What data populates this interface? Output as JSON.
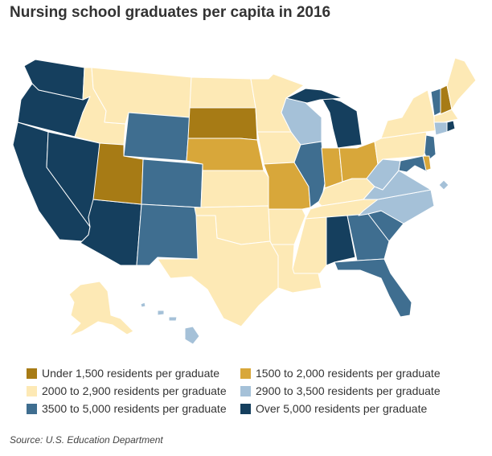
{
  "title": "Nursing school graduates per capita in 2016",
  "source": "Source: U.S. Education Department",
  "colors": {
    "c1": "#a77b15",
    "c2": "#d8a73a",
    "c3": "#fde9b5",
    "c4": "#a5c1d8",
    "c5": "#3f6e90",
    "c6": "#153f5e",
    "border": "#ffffff"
  },
  "legend": [
    {
      "label": "Under 1,500 residents per graduate",
      "color_key": "c1"
    },
    {
      "label": "1500 to 2,000 residents per graduate",
      "color_key": "c2"
    },
    {
      "label": "2000 to 2,900 residents per graduate",
      "color_key": "c3"
    },
    {
      "label": "2900 to 3,500 residents per graduate",
      "color_key": "c4"
    },
    {
      "label": "3500 to 5,000 residents per graduate",
      "color_key": "c5"
    },
    {
      "label": "Over 5,000 residents per graduate",
      "color_key": "c6"
    }
  ],
  "states": [
    {
      "id": "WA",
      "category": "c6"
    },
    {
      "id": "OR",
      "category": "c6"
    },
    {
      "id": "CA",
      "category": "c6"
    },
    {
      "id": "NV",
      "category": "c6"
    },
    {
      "id": "AZ",
      "category": "c6"
    },
    {
      "id": "ID",
      "category": "c3"
    },
    {
      "id": "MT",
      "category": "c3"
    },
    {
      "id": "WY",
      "category": "c5"
    },
    {
      "id": "UT",
      "category": "c1"
    },
    {
      "id": "CO",
      "category": "c5"
    },
    {
      "id": "NM",
      "category": "c5"
    },
    {
      "id": "ND",
      "category": "c3"
    },
    {
      "id": "SD",
      "category": "c1"
    },
    {
      "id": "NE",
      "category": "c2"
    },
    {
      "id": "KS",
      "category": "c3"
    },
    {
      "id": "OK",
      "category": "c3"
    },
    {
      "id": "TX",
      "category": "c3"
    },
    {
      "id": "MN",
      "category": "c3"
    },
    {
      "id": "IA",
      "category": "c3"
    },
    {
      "id": "MO",
      "category": "c2"
    },
    {
      "id": "AR",
      "category": "c3"
    },
    {
      "id": "LA",
      "category": "c3"
    },
    {
      "id": "WI",
      "category": "c4"
    },
    {
      "id": "IL",
      "category": "c5"
    },
    {
      "id": "MI",
      "category": "c6"
    },
    {
      "id": "IN",
      "category": "c2"
    },
    {
      "id": "OH",
      "category": "c2"
    },
    {
      "id": "KY",
      "category": "c3"
    },
    {
      "id": "TN",
      "category": "c3"
    },
    {
      "id": "MS",
      "category": "c3"
    },
    {
      "id": "AL",
      "category": "c6"
    },
    {
      "id": "GA",
      "category": "c5"
    },
    {
      "id": "FL",
      "category": "c5"
    },
    {
      "id": "SC",
      "category": "c5"
    },
    {
      "id": "NC",
      "category": "c4"
    },
    {
      "id": "VA",
      "category": "c4"
    },
    {
      "id": "WV",
      "category": "c4"
    },
    {
      "id": "PA",
      "category": "c3"
    },
    {
      "id": "NY",
      "category": "c3"
    },
    {
      "id": "VT",
      "category": "c5"
    },
    {
      "id": "NH",
      "category": "c1"
    },
    {
      "id": "ME",
      "category": "c3"
    },
    {
      "id": "MA",
      "category": "c3"
    },
    {
      "id": "CT",
      "category": "c4"
    },
    {
      "id": "RI",
      "category": "c6"
    },
    {
      "id": "NJ",
      "category": "c5"
    },
    {
      "id": "DE",
      "category": "c2"
    },
    {
      "id": "MD",
      "category": "c5"
    },
    {
      "id": "DC",
      "category": "c4"
    },
    {
      "id": "AK",
      "category": "c3"
    },
    {
      "id": "HI",
      "category": "c4"
    }
  ]
}
